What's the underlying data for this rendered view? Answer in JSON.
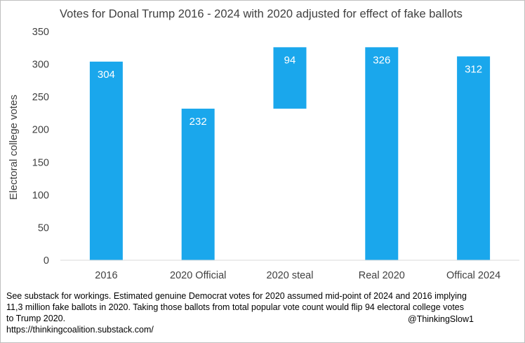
{
  "chart_data": {
    "type": "bar",
    "title": "Votes for Donal Trump 2016 - 2024 with 2020 adjusted for effect of fake ballots",
    "xlabel": "",
    "ylabel": "Electoral college votes",
    "ylim": [
      0,
      350
    ],
    "yticks": [
      0,
      50,
      100,
      150,
      200,
      250,
      300,
      350
    ],
    "categories": [
      "2016",
      "2020 Official",
      "2020 steal",
      "Real 2020",
      "Offical 2024"
    ],
    "bars": [
      {
        "category": "2016",
        "base": 0,
        "value": 304,
        "label": "304"
      },
      {
        "category": "2020 Official",
        "base": 0,
        "value": 232,
        "label": "232"
      },
      {
        "category": "2020 steal",
        "base": 232,
        "value": 94,
        "label": "94"
      },
      {
        "category": "Real 2020",
        "base": 0,
        "value": 326,
        "label": "326"
      },
      {
        "category": "Offical 2024",
        "base": 0,
        "value": 312,
        "label": "312"
      }
    ],
    "bar_color": "#1aa7ec",
    "grid": false,
    "legend": "none"
  },
  "note": {
    "lines": [
      "See substack for workings.  Estimated genuine Democrat votes for 2020 assumed mid-point of 2024 and 2016 implying",
      "11,3 million fake ballots in 2020.  Taking those ballots from total popular vote count would flip 94 electoral college votes",
      "to Trump 2020.",
      "https://thinkingcoalition.substack.com/"
    ],
    "handle": "@ThinkingSlow1"
  }
}
